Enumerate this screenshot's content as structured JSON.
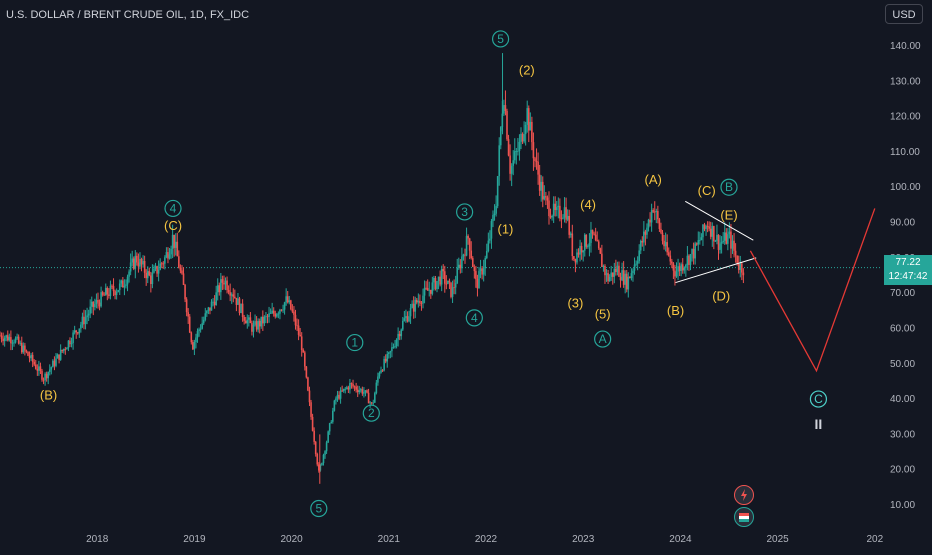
{
  "header": {
    "title": "U.S. DOLLAR / BRENT CRUDE OIL, 1D, FX_IDC",
    "currency": "USD"
  },
  "price_tag": {
    "price": "77.22",
    "countdown": "12:47:42"
  },
  "colors": {
    "background": "#131722",
    "up": "#26a69a",
    "down": "#ef5350",
    "wave_label_yellow": "#f5c542",
    "wave_label_green": "#26a69a",
    "projection": "#e53935",
    "triangle": "#ffffff",
    "price_line": "#26a69a"
  },
  "icons": [
    "lightning-icon",
    "flag-icon"
  ],
  "chart_data": {
    "type": "candlestick",
    "title": "U.S. DOLLAR / BRENT CRUDE OIL, 1D, FX_IDC",
    "y_axis_ticks": [
      140,
      130,
      120,
      110,
      100,
      90,
      80,
      70,
      60,
      50,
      40,
      30,
      20,
      10
    ],
    "y_tick_labels": [
      "140.00",
      "130.00",
      "120.00",
      "110.00",
      "100.00",
      "90.00",
      "80.00",
      "70.00",
      "60.00",
      "50.00",
      "40.00",
      "30.00",
      "20.00",
      "10.00"
    ],
    "x_axis_labels": [
      "2018",
      "2019",
      "2020",
      "2021",
      "2022",
      "2023",
      "2024",
      "2025",
      "202"
    ],
    "ylim": [
      5,
      150
    ],
    "xlim": [
      2017.0,
      2026.0
    ],
    "current_price": 77.22,
    "price_path": [
      [
        2017.0,
        58
      ],
      [
        2017.15,
        57
      ],
      [
        2017.3,
        52
      ],
      [
        2017.45,
        46
      ],
      [
        2017.6,
        52
      ],
      [
        2017.8,
        60
      ],
      [
        2017.95,
        66
      ],
      [
        2018.1,
        70
      ],
      [
        2018.25,
        72
      ],
      [
        2018.4,
        80
      ],
      [
        2018.55,
        74
      ],
      [
        2018.7,
        80
      ],
      [
        2018.78,
        86
      ],
      [
        2018.9,
        70
      ],
      [
        2018.98,
        55
      ],
      [
        2019.05,
        60
      ],
      [
        2019.2,
        68
      ],
      [
        2019.3,
        74
      ],
      [
        2019.4,
        70
      ],
      [
        2019.5,
        64
      ],
      [
        2019.6,
        60
      ],
      [
        2019.7,
        62
      ],
      [
        2019.85,
        65
      ],
      [
        2019.95,
        68
      ],
      [
        2020.0,
        65
      ],
      [
        2020.1,
        56
      ],
      [
        2020.2,
        35
      ],
      [
        2020.28,
        19
      ],
      [
        2020.36,
        28
      ],
      [
        2020.45,
        40
      ],
      [
        2020.6,
        44
      ],
      [
        2020.75,
        42
      ],
      [
        2020.83,
        38
      ],
      [
        2020.9,
        48
      ],
      [
        2021.0,
        52
      ],
      [
        2021.15,
        62
      ],
      [
        2021.3,
        68
      ],
      [
        2021.45,
        72
      ],
      [
        2021.55,
        75
      ],
      [
        2021.65,
        70
      ],
      [
        2021.75,
        80
      ],
      [
        2021.82,
        86
      ],
      [
        2021.9,
        72
      ],
      [
        2022.0,
        80
      ],
      [
        2022.1,
        95
      ],
      [
        2022.18,
        128
      ],
      [
        2022.25,
        105
      ],
      [
        2022.35,
        112
      ],
      [
        2022.42,
        122
      ],
      [
        2022.5,
        108
      ],
      [
        2022.6,
        96
      ],
      [
        2022.72,
        92
      ],
      [
        2022.82,
        94
      ],
      [
        2022.9,
        80
      ],
      [
        2023.0,
        84
      ],
      [
        2023.1,
        86
      ],
      [
        2023.25,
        74
      ],
      [
        2023.35,
        77
      ],
      [
        2023.45,
        73
      ],
      [
        2023.55,
        80
      ],
      [
        2023.65,
        88
      ],
      [
        2023.72,
        95
      ],
      [
        2023.85,
        82
      ],
      [
        2023.95,
        76
      ],
      [
        2024.05,
        79
      ],
      [
        2024.15,
        82
      ],
      [
        2024.28,
        90
      ],
      [
        2024.4,
        84
      ],
      [
        2024.5,
        86
      ],
      [
        2024.6,
        78
      ],
      [
        2024.65,
        77
      ]
    ],
    "projection_path": [
      [
        2024.72,
        82
      ],
      [
        2025.4,
        48
      ],
      [
        2026.0,
        94
      ]
    ],
    "triangle_lines": [
      [
        [
          2024.05,
          96
        ],
        [
          2024.75,
          85
        ]
      ],
      [
        [
          2023.95,
          73
        ],
        [
          2024.78,
          80
        ]
      ]
    ],
    "wave_labels": [
      {
        "text": "(B)",
        "x": 2017.5,
        "y": 41,
        "style": "yellow"
      },
      {
        "text": "(C)",
        "x": 2018.78,
        "y": 89,
        "style": "yellow"
      },
      {
        "text": "4",
        "x": 2018.78,
        "y": 94,
        "style": "green-circle"
      },
      {
        "text": "5",
        "x": 2020.28,
        "y": 9,
        "style": "green-circle"
      },
      {
        "text": "1",
        "x": 2020.65,
        "y": 56,
        "style": "green-circle"
      },
      {
        "text": "2",
        "x": 2020.82,
        "y": 36,
        "style": "green-circle"
      },
      {
        "text": "3",
        "x": 2021.78,
        "y": 93,
        "style": "green-circle"
      },
      {
        "text": "4",
        "x": 2021.88,
        "y": 63,
        "style": "green-circle"
      },
      {
        "text": "5",
        "x": 2022.15,
        "y": 142,
        "style": "green-circle"
      },
      {
        "text": "(1)",
        "x": 2022.2,
        "y": 88,
        "style": "yellow"
      },
      {
        "text": "(2)",
        "x": 2022.42,
        "y": 133,
        "style": "yellow"
      },
      {
        "text": "(3)",
        "x": 2022.92,
        "y": 67,
        "style": "yellow"
      },
      {
        "text": "(4)",
        "x": 2023.05,
        "y": 95,
        "style": "yellow"
      },
      {
        "text": "(5)",
        "x": 2023.2,
        "y": 64,
        "style": "yellow"
      },
      {
        "text": "A",
        "x": 2023.2,
        "y": 57,
        "style": "green-circle"
      },
      {
        "text": "(A)",
        "x": 2023.72,
        "y": 102,
        "style": "yellow"
      },
      {
        "text": "(B)",
        "x": 2023.95,
        "y": 65,
        "style": "yellow"
      },
      {
        "text": "(C)",
        "x": 2024.27,
        "y": 99,
        "style": "yellow"
      },
      {
        "text": "B",
        "x": 2024.5,
        "y": 100,
        "style": "green-circle"
      },
      {
        "text": "(E)",
        "x": 2024.5,
        "y": 92,
        "style": "yellow"
      },
      {
        "text": "(D)",
        "x": 2024.42,
        "y": 69,
        "style": "yellow"
      },
      {
        "text": "C",
        "x": 2025.42,
        "y": 40,
        "style": "cyan-circle"
      },
      {
        "text": "II",
        "x": 2025.42,
        "y": 33,
        "style": "white"
      }
    ]
  }
}
